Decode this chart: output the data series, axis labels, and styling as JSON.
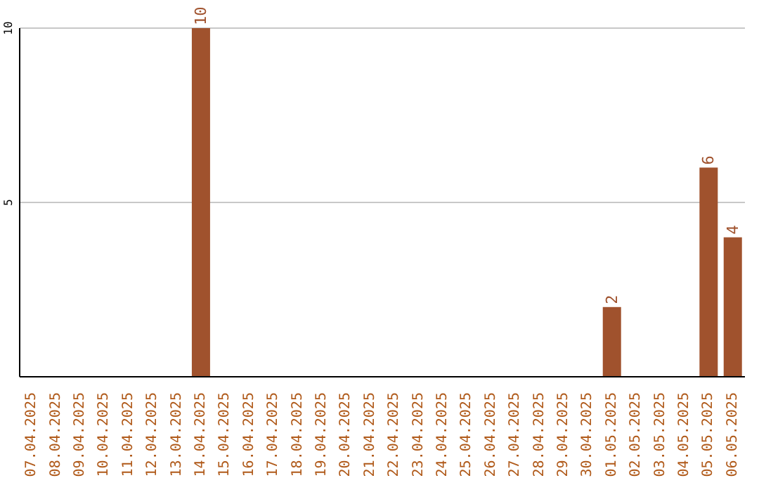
{
  "chart_data": {
    "type": "bar",
    "categories": [
      "07.04.2025",
      "08.04.2025",
      "09.04.2025",
      "10.04.2025",
      "11.04.2025",
      "12.04.2025",
      "13.04.2025",
      "14.04.2025",
      "15.04.2025",
      "16.04.2025",
      "17.04.2025",
      "18.04.2025",
      "19.04.2025",
      "20.04.2025",
      "21.04.2025",
      "22.04.2025",
      "23.04.2025",
      "24.04.2025",
      "25.04.2025",
      "26.04.2025",
      "27.04.2025",
      "28.04.2025",
      "29.04.2025",
      "30.04.2025",
      "01.05.2025",
      "02.05.2025",
      "03.05.2025",
      "04.05.2025",
      "05.05.2025",
      "06.05.2025"
    ],
    "values": [
      0,
      0,
      0,
      0,
      0,
      0,
      0,
      10,
      0,
      0,
      0,
      0,
      0,
      0,
      0,
      0,
      0,
      0,
      0,
      0,
      0,
      0,
      0,
      0,
      2,
      0,
      0,
      0,
      6,
      4
    ],
    "value_labels": [
      null,
      null,
      null,
      null,
      null,
      null,
      null,
      "10",
      null,
      null,
      null,
      null,
      null,
      null,
      null,
      null,
      null,
      null,
      null,
      null,
      null,
      null,
      null,
      null,
      "2",
      null,
      null,
      null,
      "6",
      "4"
    ],
    "color": "#a0522d",
    "ylim": [
      0,
      10
    ],
    "yticks": [
      5,
      10
    ],
    "grid": "y"
  }
}
